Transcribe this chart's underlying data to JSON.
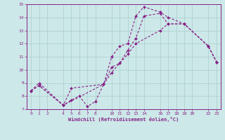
{
  "xlabel": "Windchill (Refroidissement éolien,°C)",
  "background_color": "#cce8e8",
  "line_color": "#882288",
  "grid_color": "#aacccc",
  "xlim": [
    -0.5,
    23.5
  ],
  "ylim": [
    7,
    15
  ],
  "xticks": [
    0,
    1,
    2,
    4,
    5,
    6,
    7,
    8,
    10,
    11,
    12,
    13,
    14,
    16,
    17,
    18,
    19,
    20,
    22,
    23
  ],
  "yticks": [
    7,
    8,
    9,
    10,
    11,
    12,
    13,
    14,
    15
  ],
  "series": [
    {
      "x": [
        0,
        1,
        4,
        5,
        9,
        10,
        11,
        12,
        13,
        14,
        16,
        17,
        19,
        22,
        23
      ],
      "y": [
        8.4,
        8.8,
        7.3,
        8.6,
        8.9,
        11.0,
        11.8,
        12.0,
        14.1,
        14.8,
        14.4,
        14.0,
        13.5,
        11.8,
        10.6
      ]
    },
    {
      "x": [
        0,
        1,
        4,
        5,
        6,
        7,
        8,
        9,
        10,
        11,
        12,
        13,
        14,
        16,
        17,
        19,
        22,
        23
      ],
      "y": [
        8.4,
        9.0,
        7.3,
        7.7,
        8.0,
        7.2,
        7.6,
        8.9,
        10.2,
        10.5,
        11.5,
        12.4,
        14.1,
        14.3,
        13.5,
        13.5,
        11.8,
        10.6
      ]
    },
    {
      "x": [
        0,
        1,
        4,
        9,
        10,
        11,
        12,
        13,
        16,
        17,
        19,
        22,
        23
      ],
      "y": [
        8.4,
        8.8,
        7.3,
        8.9,
        9.8,
        10.5,
        11.2,
        12.0,
        13.0,
        13.5,
        13.5,
        11.8,
        10.6
      ]
    }
  ]
}
